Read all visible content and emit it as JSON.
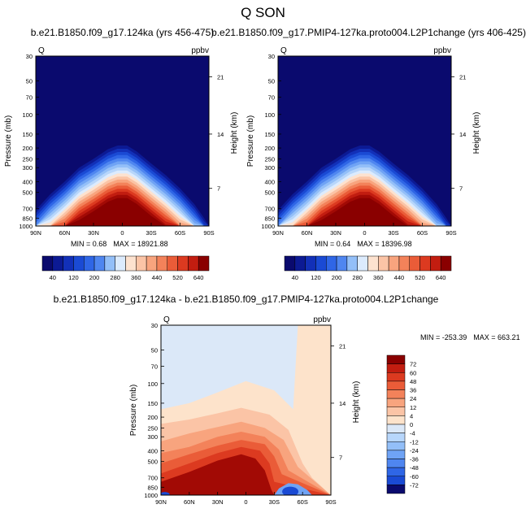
{
  "title": "Q SON",
  "palette": {
    "blues": [
      "#0a0a6e",
      "#0c1a94",
      "#1230b8",
      "#1a4ad4",
      "#2f66e6",
      "#4f86f0",
      "#6fa3f5",
      "#93bff8",
      "#b7d6fb",
      "#dcebfd"
    ],
    "reds": [
      "#fde2cf",
      "#fbc4a6",
      "#f8a47e",
      "#f3825a",
      "#ea5c38",
      "#dc3a20",
      "#c21d10",
      "#a20a05",
      "#8a0000"
    ],
    "neutral_blue": "#dbe8f8",
    "neutral_red": "#fde3cb"
  },
  "chart_data": [
    {
      "type": "heatmap",
      "id": "panel-left",
      "title": "b.e21.B1850.f09_g17.124ka (yrs 456-475)",
      "variable_label": "Q",
      "units_label": "ppbv",
      "xlabel": "",
      "ylabel": "Pressure (mb)",
      "ylabel_right": "Height (km)",
      "x_ticks": [
        "90N",
        "60N",
        "30N",
        "0",
        "30S",
        "60S",
        "90S"
      ],
      "y_ticks": [
        "30",
        "50",
        "70",
        "100",
        "150",
        "200",
        "250",
        "300",
        "400",
        "500",
        "700",
        "850",
        "1000"
      ],
      "y_tick_values": [
        30,
        50,
        70,
        100,
        150,
        200,
        250,
        300,
        400,
        500,
        700,
        850,
        1000
      ],
      "right_ticks": [
        "21",
        "14",
        "7"
      ],
      "right_tick_pressures": [
        46,
        150,
        460
      ],
      "ylim": [
        1000,
        30
      ],
      "xlim": [
        "90N",
        "90S"
      ],
      "min_label": "MIN = ",
      "min_value": "0.68",
      "max_label": "MAX = ",
      "max_value": "18921.88",
      "colorbar_labels": [
        "40",
        "120",
        "200",
        "280",
        "360",
        "440",
        "520",
        "640"
      ],
      "colorbar_levels": [
        20,
        40,
        80,
        120,
        160,
        200,
        240,
        280,
        320,
        360,
        400,
        440,
        480,
        520,
        560,
        640
      ],
      "tropopause_pressures_by_lat": [
        [
          90,
          720
        ],
        [
          75,
          520
        ],
        [
          60,
          400
        ],
        [
          45,
          300
        ],
        [
          30,
          250
        ],
        [
          15,
          205
        ],
        [
          5,
          190
        ],
        [
          -5,
          190
        ],
        [
          -15,
          215
        ],
        [
          -30,
          275
        ],
        [
          -45,
          350
        ],
        [
          -60,
          460
        ],
        [
          -75,
          640
        ],
        [
          -85,
          850
        ],
        [
          -90,
          1000
        ]
      ],
      "gradient_width_factor": 0.3
    },
    {
      "type": "heatmap",
      "id": "panel-right",
      "title": "b.e21.B1850.f09_g17.PMIP4-127ka.proto004.L2P1change (yrs 406-425)",
      "variable_label": "Q",
      "units_label": "ppbv",
      "xlabel": "",
      "ylabel": "Pressure (mb)",
      "ylabel_right": "Height (km)",
      "x_ticks": [
        "90N",
        "60N",
        "30N",
        "0",
        "30S",
        "60S",
        "90S"
      ],
      "y_ticks": [
        "30",
        "50",
        "70",
        "100",
        "150",
        "200",
        "250",
        "300",
        "400",
        "500",
        "700",
        "850",
        "1000"
      ],
      "y_tick_values": [
        30,
        50,
        70,
        100,
        150,
        200,
        250,
        300,
        400,
        500,
        700,
        850,
        1000
      ],
      "right_ticks": [
        "21",
        "14",
        "7"
      ],
      "right_tick_pressures": [
        46,
        150,
        460
      ],
      "ylim": [
        1000,
        30
      ],
      "xlim": [
        "90N",
        "90S"
      ],
      "min_label": "MIN = ",
      "min_value": "0.64",
      "max_label": "MAX = ",
      "max_value": "18396.98",
      "colorbar_labels": [
        "40",
        "120",
        "200",
        "280",
        "360",
        "440",
        "520",
        "640"
      ],
      "colorbar_levels": [
        20,
        40,
        80,
        120,
        160,
        200,
        240,
        280,
        320,
        360,
        400,
        440,
        480,
        520,
        560,
        640
      ],
      "tropopause_pressures_by_lat": [
        [
          90,
          720
        ],
        [
          75,
          520
        ],
        [
          60,
          400
        ],
        [
          45,
          300
        ],
        [
          30,
          250
        ],
        [
          15,
          205
        ],
        [
          5,
          190
        ],
        [
          -5,
          190
        ],
        [
          -15,
          215
        ],
        [
          -30,
          275
        ],
        [
          -45,
          350
        ],
        [
          -60,
          460
        ],
        [
          -75,
          640
        ],
        [
          -85,
          850
        ],
        [
          -90,
          1000
        ]
      ],
      "gradient_width_factor": 0.3
    },
    {
      "type": "heatmap",
      "id": "panel-diff",
      "title": "b.e21.B1850.f09_g17.124ka - b.e21.B1850.f09_g17.PMIP4-127ka.proto004.L2P1change",
      "variable_label": "Q",
      "units_label": "ppbv",
      "xlabel": "",
      "ylabel": "Pressure (mb)",
      "ylabel_right": "Height (km)",
      "x_ticks": [
        "90N",
        "60N",
        "30N",
        "0",
        "30S",
        "60S",
        "90S"
      ],
      "y_ticks": [
        "30",
        "50",
        "70",
        "100",
        "150",
        "200",
        "250",
        "300",
        "400",
        "500",
        "700",
        "850",
        "1000"
      ],
      "y_tick_values": [
        30,
        50,
        70,
        100,
        150,
        200,
        250,
        300,
        400,
        500,
        700,
        850,
        1000
      ],
      "right_ticks": [
        "21",
        "14",
        "7"
      ],
      "right_tick_pressures": [
        46,
        150,
        460
      ],
      "ylim": [
        1000,
        30
      ],
      "xlim": [
        "90N",
        "90S"
      ],
      "min_label": "MIN = ",
      "min_value": "-253.39",
      "max_label": "MAX = ",
      "max_value": "663.21",
      "colorbar_labels": [
        "72",
        "60",
        "48",
        "36",
        "24",
        "12",
        "4",
        "0",
        "-4",
        "-12",
        "-24",
        "-36",
        "-48",
        "-60",
        "-72"
      ],
      "colorbar_levels": [
        -72,
        -60,
        -48,
        -36,
        -24,
        -12,
        -4,
        0,
        4,
        12,
        24,
        36,
        48,
        60,
        72
      ],
      "contour_levels_by_lat": [
        {
          "level": 4,
          "points": [
            [
              90,
              170
            ],
            [
              60,
              150
            ],
            [
              30,
              120
            ],
            [
              0,
              95
            ],
            [
              -30,
              115
            ],
            [
              -50,
              170
            ],
            [
              -55,
              30
            ]
          ]
        },
        {
          "level": 12,
          "points": [
            [
              90,
              230
            ],
            [
              60,
              210
            ],
            [
              30,
              185
            ],
            [
              5,
              165
            ],
            [
              -25,
              190
            ],
            [
              -45,
              260
            ],
            [
              -60,
              520
            ],
            [
              -70,
              700
            ]
          ]
        },
        {
          "level": 24,
          "points": [
            [
              90,
              330
            ],
            [
              60,
              280
            ],
            [
              30,
              245
            ],
            [
              5,
              220
            ],
            [
              -20,
              250
            ],
            [
              -40,
              320
            ],
            [
              -55,
              560
            ]
          ]
        },
        {
          "level": 36,
          "points": [
            [
              90,
              420
            ],
            [
              60,
              370
            ],
            [
              30,
              300
            ],
            [
              5,
              270
            ],
            [
              -20,
              300
            ],
            [
              -35,
              390
            ],
            [
              -45,
              600
            ]
          ]
        },
        {
          "level": 48,
          "points": [
            [
              90,
              520
            ],
            [
              60,
              430
            ],
            [
              30,
              360
            ],
            [
              5,
              320
            ],
            [
              -20,
              350
            ],
            [
              -30,
              450
            ],
            [
              -38,
              650
            ]
          ]
        },
        {
          "level": 60,
          "points": [
            [
              90,
              640
            ],
            [
              60,
              520
            ],
            [
              30,
              420
            ],
            [
              5,
              370
            ],
            [
              -15,
              400
            ],
            [
              -25,
              520
            ],
            [
              -30,
              760
            ]
          ]
        },
        {
          "level": 72,
          "points": [
            [
              90,
              760
            ],
            [
              60,
              620
            ],
            [
              30,
              490
            ],
            [
              5,
              430
            ],
            [
              -10,
              470
            ],
            [
              -20,
              600
            ],
            [
              -27,
              900
            ],
            [
              -30,
              1000
            ]
          ]
        }
      ],
      "negative_region": [
        [
          -30,
          1000
        ],
        [
          -35,
          870
        ],
        [
          -45,
          780
        ],
        [
          -55,
          800
        ],
        [
          -65,
          900
        ],
        [
          -70,
          1000
        ]
      ]
    }
  ]
}
